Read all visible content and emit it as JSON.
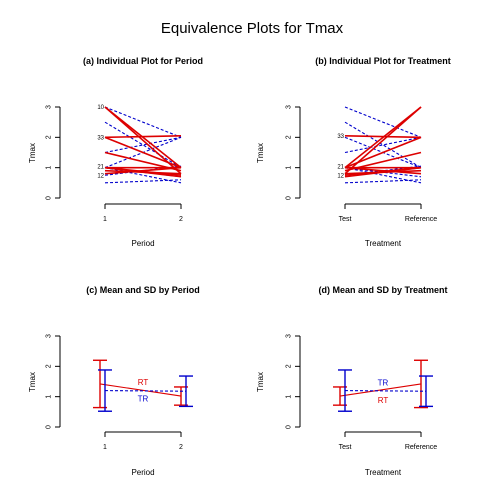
{
  "title": "Equivalence Plots for Tmax",
  "colors": {
    "RT": "#dd0000",
    "TR": "#0000cc"
  },
  "chart_data": [
    {
      "id": "a",
      "type": "line",
      "title": "(a) Individual Plot for Period",
      "xlabel": "Period",
      "ylabel": "Tmax",
      "categories": [
        "1",
        "2"
      ],
      "yticks": [
        "0",
        "1",
        "2",
        "3"
      ],
      "ylim": [
        0,
        3
      ],
      "series": [
        {
          "group": "RT",
          "values": [
            3.0,
            1.0
          ]
        },
        {
          "group": "RT",
          "values": [
            3.0,
            0.8
          ]
        },
        {
          "group": "RT",
          "values": [
            2.0,
            1.0
          ]
        },
        {
          "group": "RT",
          "values": [
            2.0,
            2.05
          ]
        },
        {
          "group": "RT",
          "values": [
            1.5,
            0.9
          ]
        },
        {
          "group": "RT",
          "values": [
            1.0,
            1.0
          ]
        },
        {
          "group": "RT",
          "values": [
            1.0,
            0.75
          ]
        },
        {
          "group": "RT",
          "values": [
            1.0,
            0.7
          ]
        },
        {
          "group": "RT",
          "values": [
            0.9,
            0.8
          ]
        },
        {
          "group": "RT",
          "values": [
            0.8,
            1.0
          ]
        },
        {
          "group": "TR",
          "values": [
            3.0,
            2.0
          ]
        },
        {
          "group": "TR",
          "values": [
            2.5,
            1.0
          ]
        },
        {
          "group": "TR",
          "values": [
            2.0,
            1.0
          ]
        },
        {
          "group": "TR",
          "values": [
            1.5,
            2.0
          ]
        },
        {
          "group": "TR",
          "values": [
            1.0,
            2.0
          ]
        },
        {
          "group": "TR",
          "values": [
            1.0,
            1.0
          ]
        },
        {
          "group": "TR",
          "values": [
            1.0,
            0.7
          ]
        },
        {
          "group": "TR",
          "values": [
            1.0,
            0.5
          ]
        },
        {
          "group": "TR",
          "values": [
            0.75,
            1.05
          ]
        },
        {
          "group": "TR",
          "values": [
            0.5,
            0.6
          ]
        }
      ],
      "point_labels": [
        {
          "text": "10",
          "x": "1",
          "y": 3.0
        },
        {
          "text": "33",
          "x": "1",
          "y": 2.0
        },
        {
          "text": "21",
          "x": "1",
          "y": 1.05
        },
        {
          "text": "12",
          "x": "1",
          "y": 0.75
        }
      ]
    },
    {
      "id": "b",
      "type": "line",
      "title": "(b) Individual Plot for Treatment",
      "xlabel": "Treatment",
      "ylabel": "Tmax",
      "categories": [
        "Test",
        "Reference"
      ],
      "yticks": [
        "0",
        "1",
        "2",
        "3"
      ],
      "ylim": [
        0,
        3
      ],
      "series": [
        {
          "group": "RT",
          "values": [
            1.0,
            3.0
          ]
        },
        {
          "group": "RT",
          "values": [
            0.8,
            3.0
          ]
        },
        {
          "group": "RT",
          "values": [
            1.0,
            2.0
          ]
        },
        {
          "group": "RT",
          "values": [
            2.05,
            2.0
          ]
        },
        {
          "group": "RT",
          "values": [
            0.9,
            1.5
          ]
        },
        {
          "group": "RT",
          "values": [
            1.0,
            1.0
          ]
        },
        {
          "group": "RT",
          "values": [
            0.75,
            1.0
          ]
        },
        {
          "group": "RT",
          "values": [
            0.7,
            1.0
          ]
        },
        {
          "group": "RT",
          "values": [
            0.8,
            0.9
          ]
        },
        {
          "group": "RT",
          "values": [
            1.0,
            0.8
          ]
        },
        {
          "group": "TR",
          "values": [
            3.0,
            2.0
          ]
        },
        {
          "group": "TR",
          "values": [
            2.5,
            1.0
          ]
        },
        {
          "group": "TR",
          "values": [
            2.0,
            1.0
          ]
        },
        {
          "group": "TR",
          "values": [
            1.5,
            2.0
          ]
        },
        {
          "group": "TR",
          "values": [
            1.0,
            2.0
          ]
        },
        {
          "group": "TR",
          "values": [
            1.0,
            1.0
          ]
        },
        {
          "group": "TR",
          "values": [
            1.0,
            0.7
          ]
        },
        {
          "group": "TR",
          "values": [
            1.0,
            0.5
          ]
        },
        {
          "group": "TR",
          "values": [
            0.75,
            1.05
          ]
        },
        {
          "group": "TR",
          "values": [
            0.5,
            0.6
          ]
        }
      ],
      "point_labels": [
        {
          "text": "33",
          "x": "Test",
          "y": 2.05
        },
        {
          "text": "21",
          "x": "Test",
          "y": 1.05
        },
        {
          "text": "12",
          "x": "Test",
          "y": 0.75
        }
      ]
    },
    {
      "id": "c",
      "type": "errorbar",
      "title": "(c) Mean and SD by Period",
      "xlabel": "Period",
      "ylabel": "Tmax",
      "categories": [
        "1",
        "2"
      ],
      "yticks": [
        "0",
        "1",
        "2",
        "3"
      ],
      "ylim": [
        0,
        3
      ],
      "series": [
        {
          "name": "RT",
          "mean": [
            1.42,
            1.02
          ],
          "sd": [
            0.78,
            0.3
          ]
        },
        {
          "name": "TR",
          "mean": [
            1.2,
            1.18
          ],
          "sd": [
            0.68,
            0.5
          ]
        }
      ]
    },
    {
      "id": "d",
      "type": "errorbar",
      "title": "(d) Mean and SD by Treatment",
      "xlabel": "Treatment",
      "ylabel": "Tmax",
      "categories": [
        "Test",
        "Reference"
      ],
      "yticks": [
        "0",
        "1",
        "2",
        "3"
      ],
      "ylim": [
        0,
        3
      ],
      "series": [
        {
          "name": "RT",
          "mean": [
            1.02,
            1.42
          ],
          "sd": [
            0.3,
            0.78
          ]
        },
        {
          "name": "TR",
          "mean": [
            1.2,
            1.18
          ],
          "sd": [
            0.68,
            0.5
          ]
        }
      ]
    }
  ]
}
